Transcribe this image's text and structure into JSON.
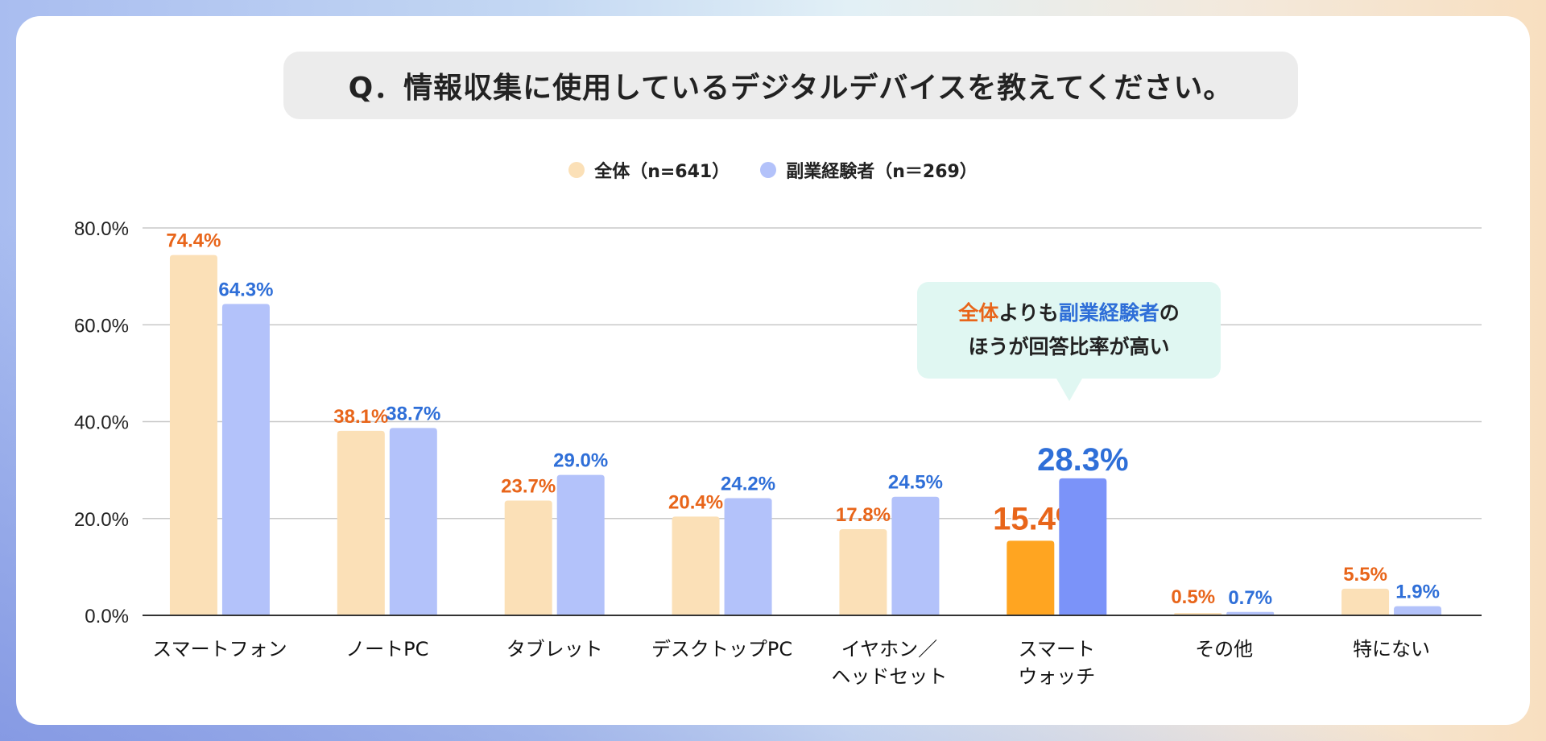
{
  "title": "Q．情報収集に使用しているデジタルデバイスを教えてください。",
  "legend": [
    {
      "label": "全体（n=641）",
      "color": "#fbe0b7"
    },
    {
      "label": "副業経験者（n＝269）",
      "color": "#b3c2fa"
    }
  ],
  "callout": {
    "line1_part1": "全体",
    "line1_part2": "よりも",
    "line1_part3": "副業経験者",
    "line1_part4": "の",
    "line2": "ほうが回答比率が高い"
  },
  "colors": {
    "all_bar": "#fbe0b7",
    "side_bar": "#b3c2fa",
    "all_highlight": "#ffa521",
    "side_highlight": "#7b93f9",
    "all_label": "#e8651a",
    "side_label": "#2f6fd8",
    "grid": "#c8c8c8",
    "axis": "#333333"
  },
  "chart_data": {
    "type": "bar",
    "title": "Q．情報収集に使用しているデジタルデバイスを教えてください。",
    "xlabel": "",
    "ylabel": "",
    "ylim": [
      0,
      80
    ],
    "yticks": [
      "0.0%",
      "20.0%",
      "40.0%",
      "60.0%",
      "80.0%"
    ],
    "ytick_values": [
      0,
      20,
      40,
      60,
      80
    ],
    "grid": true,
    "legend_position": "top-center",
    "categories": [
      [
        "スマートフォン"
      ],
      [
        "ノートPC"
      ],
      [
        "タブレット"
      ],
      [
        "デスクトップPC"
      ],
      [
        "イヤホン／",
        "ヘッドセット"
      ],
      [
        "スマート",
        "ウォッチ"
      ],
      [
        "その他"
      ],
      [
        "特にない"
      ]
    ],
    "highlight_index": 5,
    "series": [
      {
        "name": "全体（n=641）",
        "values": [
          74.4,
          38.1,
          23.7,
          20.4,
          17.8,
          15.4,
          0.5,
          5.5
        ],
        "labels": [
          "74.4%",
          "38.1%",
          "23.7%",
          "20.4%",
          "17.8%",
          "15.4%",
          "0.5%",
          "5.5%"
        ]
      },
      {
        "name": "副業経験者（n＝269）",
        "values": [
          64.3,
          38.7,
          29.0,
          24.2,
          24.5,
          28.3,
          0.7,
          1.9
        ],
        "labels": [
          "64.3%",
          "38.7%",
          "29.0%",
          "24.2%",
          "24.5%",
          "28.3%",
          "0.7%",
          "1.9%"
        ]
      }
    ]
  }
}
